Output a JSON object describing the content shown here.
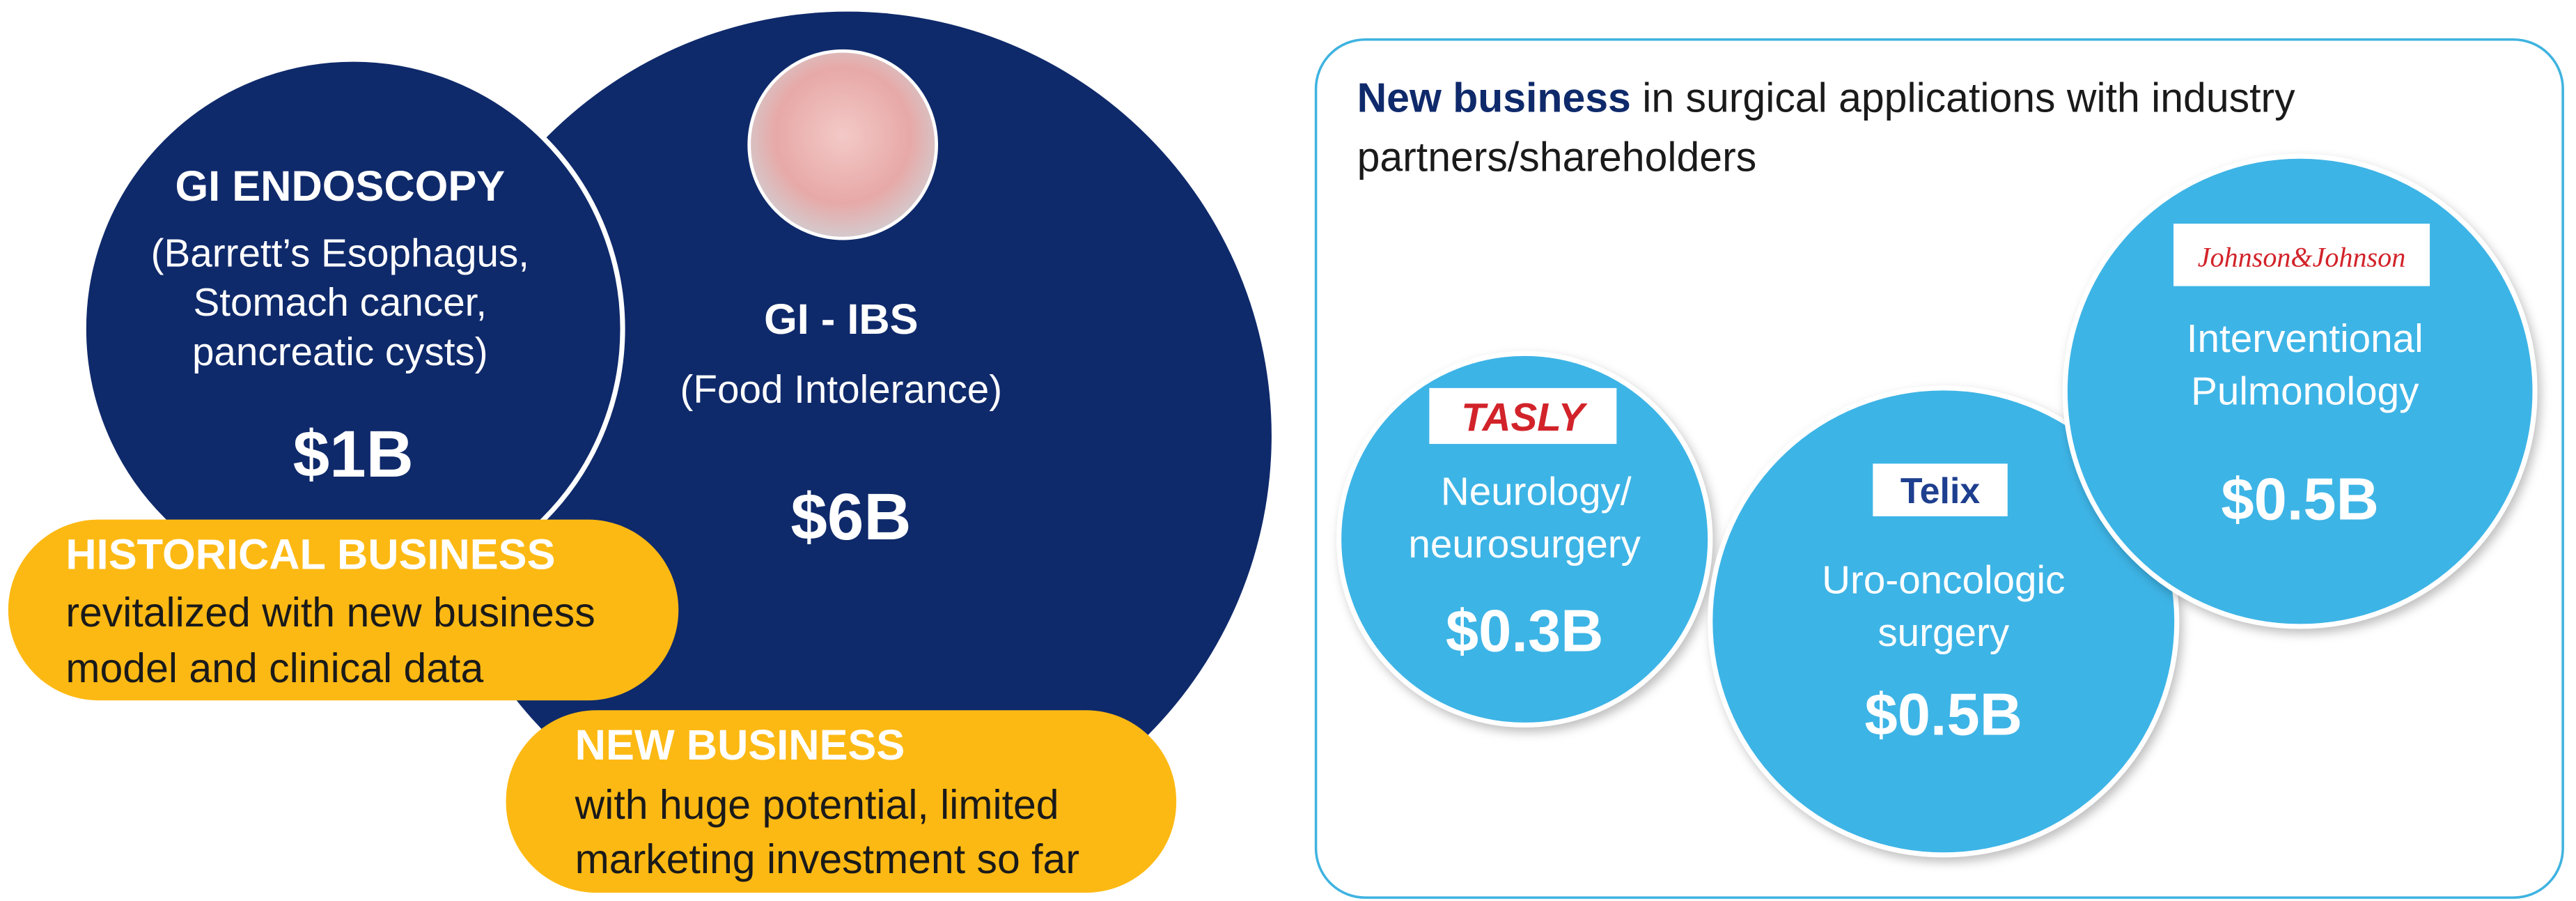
{
  "left": {
    "circles": [
      {
        "title": "GI ENDOSCOPY",
        "lines": [
          "(Barrett’s Esophagus,",
          "Stomach cancer,",
          "pancreatic cysts)"
        ],
        "value": "$1B"
      },
      {
        "title": "GI - IBS",
        "lines": [
          "(Food Intolerance)"
        ],
        "value": "$6B"
      }
    ],
    "pills": [
      {
        "title": "HISTORICAL BUSINESS",
        "lines": [
          "revitalized with new business",
          "model and clinical data"
        ]
      },
      {
        "title": "NEW BUSINESS",
        "lines": [
          "with huge potential, limited",
          "marketing investment so far"
        ]
      }
    ]
  },
  "right": {
    "heading": {
      "bold": "New business",
      "rest": " in surgical applications with industry",
      "line2": "partners/shareholders"
    },
    "circles": [
      {
        "logo": "TASLY",
        "lines": [
          "Neurology/",
          "neurosurgery"
        ],
        "value": "$0.3B"
      },
      {
        "logo": "Telix",
        "lines": [
          "Uro-oncologic",
          "surgery"
        ],
        "value": "$0.5B"
      },
      {
        "logo": "Johnson&Johnson",
        "lines": [
          "Interventional",
          "Pulmonology"
        ],
        "value": "$0.5B"
      }
    ]
  }
}
